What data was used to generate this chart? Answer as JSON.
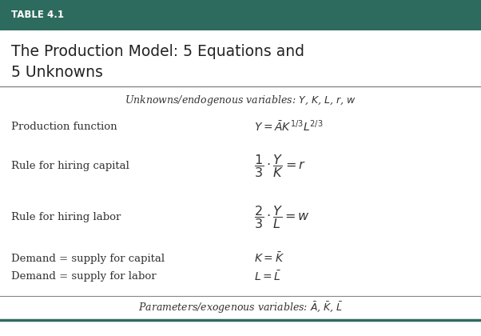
{
  "header_bg": "#2d6b5e",
  "header_text": "TABLE 4.1",
  "header_text_color": "#ffffff",
  "title_text1": "The Production Model: 5 Equations and",
  "title_text2": "5 Unknowns",
  "bg_color": "#f0f0eb",
  "body_bg": "#ffffff",
  "separator_color": "#888888",
  "footer_separator_color": "#2d6b5e",
  "rows": [
    {
      "left": "Production function",
      "right_latex": "$Y = \\bar{A}K^{1/3}L^{2/3}$"
    },
    {
      "left": "Rule for hiring capital",
      "right_latex": "$\\dfrac{1}{3}\\cdot\\dfrac{Y}{K} = r$"
    },
    {
      "left": "Rule for hiring labor",
      "right_latex": "$\\dfrac{2}{3}\\cdot\\dfrac{Y}{L} = w$"
    },
    {
      "left": "Demand = supply for capital",
      "right_latex": "$K = \\bar{K}$"
    },
    {
      "left": "Demand = supply for labor",
      "right_latex": "$L = \\bar{L}$"
    }
  ]
}
